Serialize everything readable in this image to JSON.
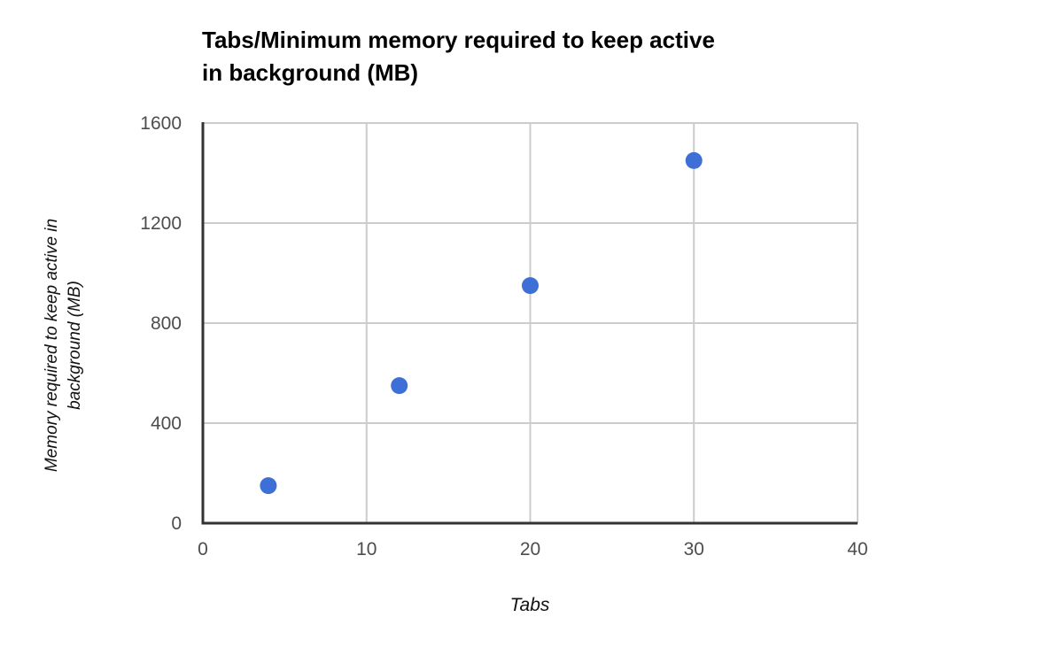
{
  "chart_data": {
    "type": "scatter",
    "title": "Tabs/Minimum memory required to keep active in background (MB)",
    "title_lines": [
      "Tabs/Minimum memory required to keep active",
      "in background (MB)"
    ],
    "xlabel": "Tabs",
    "ylabel": "Memory required to keep active in background (MB)",
    "ylabel_lines": [
      "Memory required to keep active in",
      "background (MB)"
    ],
    "x": [
      4,
      12,
      20,
      30
    ],
    "y": [
      150,
      550,
      950,
      1450
    ],
    "xlim": [
      0,
      40
    ],
    "ylim": [
      0,
      1600
    ],
    "x_ticks": [
      "0",
      "10",
      "20",
      "30",
      "40"
    ],
    "y_ticks": [
      "0",
      "400",
      "800",
      "1200",
      "1600"
    ],
    "grid": true,
    "legend": "none",
    "colors": {
      "point": "#3d6fd6",
      "grid": "#cccccc",
      "axis": "#333333",
      "tick_label": "#4d4d4d",
      "title": "#000000",
      "axis_title": "#111111"
    }
  }
}
